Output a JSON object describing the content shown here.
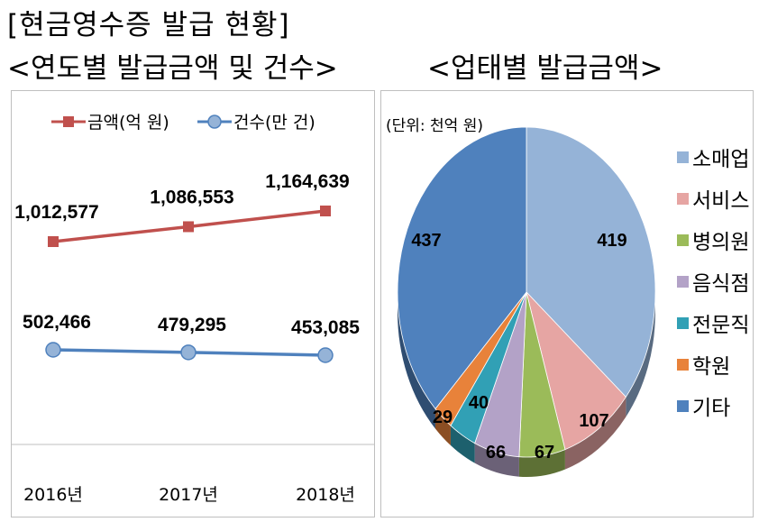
{
  "title": "[현금영수증 발급 현황]",
  "line_chart_heading": "<연도별 발급금액 및 건수>",
  "pie_chart_heading": "<업태별 발급금액>",
  "colors": {
    "amount": "#c0504d",
    "count": "#4f81bd"
  },
  "chart_data": [
    {
      "type": "line",
      "categories": [
        "2016년",
        "2017년",
        "2018년"
      ],
      "series": [
        {
          "name": "금액(억 원)",
          "values": [
            1012577,
            1086553,
            1164639
          ],
          "labels": [
            "1,012,577",
            "1,086,553",
            "1,164,639"
          ]
        },
        {
          "name": "건수(만 건)",
          "values": [
            502466,
            479295,
            453085
          ],
          "labels": [
            "502,466",
            "479,295",
            "453,085"
          ]
        }
      ],
      "legend_position": "top",
      "grid": false
    },
    {
      "type": "pie",
      "unit_note": "(단위: 천억 원)",
      "labels": [
        "소매업",
        "서비스",
        "병의원",
        "음식점",
        "전문직",
        "학원",
        "기타"
      ],
      "values": [
        419,
        107,
        67,
        66,
        40,
        29,
        437
      ],
      "colors": [
        "#95b3d7",
        "#e6a5a3",
        "#9bbb59",
        "#b3a2c7",
        "#31a0b5",
        "#e8823a",
        "#4f81bd"
      ],
      "legend_position": "right"
    }
  ]
}
